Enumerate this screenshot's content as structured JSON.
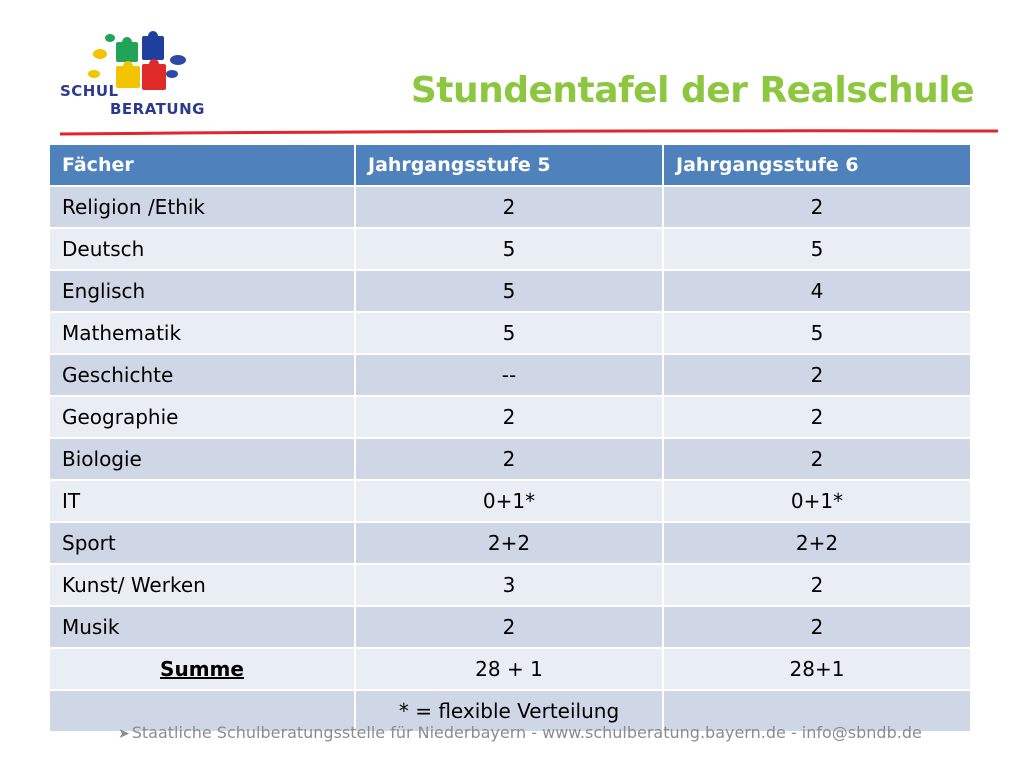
{
  "logo": {
    "line1": "SCHUL",
    "line2": "BERATUNG"
  },
  "title": "Stundentafel der Realschule",
  "table": {
    "headers": [
      "Fächer",
      "Jahrgangsstufe 5",
      "Jahrgangsstufe 6"
    ],
    "rows": [
      [
        "Religion /Ethik",
        "2",
        "2"
      ],
      [
        "Deutsch",
        "5",
        "5"
      ],
      [
        "Englisch",
        "5",
        "4"
      ],
      [
        "Mathematik",
        "5",
        "5"
      ],
      [
        "Geschichte",
        "--",
        "2"
      ],
      [
        "Geographie",
        "2",
        "2"
      ],
      [
        "Biologie",
        "2",
        "2"
      ],
      [
        "IT",
        "0+1*",
        "0+1*"
      ],
      [
        "Sport",
        "2+2",
        "2+2"
      ],
      [
        "Kunst/ Werken",
        "3",
        "2"
      ],
      [
        "Musik",
        "2",
        "2"
      ]
    ],
    "sum_row": [
      "Summe",
      "28 + 1",
      "28+1"
    ],
    "note_row": [
      "",
      "* = flexible Verteilung",
      ""
    ]
  },
  "footer": {
    "arrow_icon": "arrow-bullet-icon",
    "text": "Staatliche Schulberatungsstelle für Niederbayern - www.schulberatung.bayern.de - info@sbndb.de"
  },
  "colors": {
    "title": "#8dc63f",
    "header_bg": "#4f81bd",
    "row_odd": "#cfd7e6",
    "row_even": "#e9edf4",
    "rule": "#e0262b"
  }
}
